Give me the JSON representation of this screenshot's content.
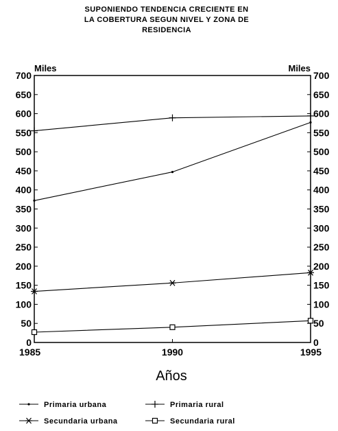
{
  "chart_data": {
    "type": "line",
    "title_lines": [
      "SUPONIENDO TENDENCIA CRECIENTE EN",
      "LA COBERTURA SEGUN NIVEL Y ZONA DE",
      "RESIDENCIA"
    ],
    "xlabel": "Años",
    "ylabel_left": "Miles",
    "ylabel_right": "Miles",
    "x_ticks": [
      "1985",
      "1990",
      "1995"
    ],
    "y_ticks": [
      "700",
      "650",
      "600",
      "550",
      "500",
      "450",
      "400",
      "350",
      "300",
      "250",
      "200",
      "150",
      "100",
      "50",
      "0"
    ],
    "xlim": [
      1985,
      1995
    ],
    "ylim": [
      0,
      700
    ],
    "grid": false,
    "legend_position": "bottom",
    "x": [
      1985,
      1990,
      1995
    ],
    "series": [
      {
        "name": "Primaria urbana",
        "marker": "dot",
        "values": [
          372,
          447,
          577
        ]
      },
      {
        "name": "Primaria rural",
        "marker": "plus",
        "values": [
          555,
          589,
          594
        ]
      },
      {
        "name": "Secundaria urbana",
        "marker": "asterisk",
        "values": [
          134,
          156,
          183
        ]
      },
      {
        "name": "Secundaria rural",
        "marker": "square",
        "values": [
          27,
          40,
          57
        ]
      }
    ]
  }
}
